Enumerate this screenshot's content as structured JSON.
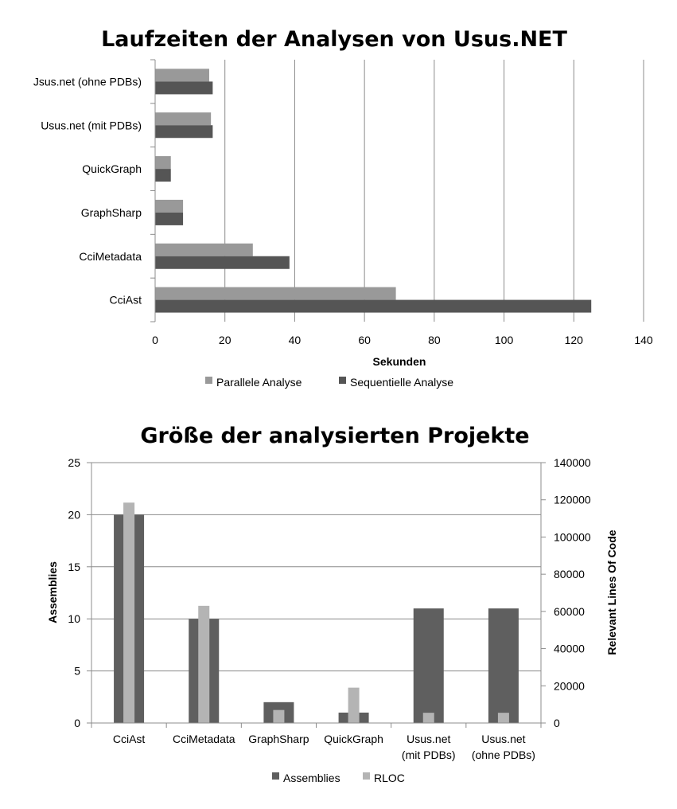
{
  "chart_data": [
    {
      "type": "bar",
      "orientation": "horizontal",
      "title": "Laufzeiten der Analysen von Usus.NET",
      "xlabel": "Sekunden",
      "ylabel": "",
      "categories": [
        "CciAst",
        "CciMetadata",
        "GraphSharp",
        "QuickGraph",
        "Usus.net (mit PDBs)",
        "Jsus.net (ohne PDBs)"
      ],
      "series": [
        {
          "name": "Parallele Analyse",
          "color": "#999999",
          "values": [
            69,
            28,
            8,
            4.5,
            16,
            15.5
          ]
        },
        {
          "name": "Sequentielle Analyse",
          "color": "#555555",
          "values": [
            125,
            38.5,
            8,
            4.5,
            16.5,
            16.5
          ]
        }
      ],
      "xlim": [
        0,
        140
      ],
      "xticks": [
        0,
        20,
        40,
        60,
        80,
        100,
        120,
        140
      ],
      "grid": "vertical",
      "legend": "bottom"
    },
    {
      "type": "bar",
      "title": "Größe der analysierten Projekte",
      "ylabel": "Assemblies",
      "y2label": "Relevant Lines Of Code",
      "categories": [
        [
          "CciAst"
        ],
        [
          "CciMetadata"
        ],
        [
          "GraphSharp"
        ],
        [
          "QuickGraph"
        ],
        [
          "Usus.net",
          "(mit PDBs)"
        ],
        [
          "Usus.net",
          "(ohne PDBs)"
        ]
      ],
      "series": [
        {
          "name": "Assemblies",
          "axis": "left",
          "color": "#5f5f5f",
          "values": [
            20,
            10,
            2,
            1,
            11,
            11
          ]
        },
        {
          "name": "RLOC",
          "axis": "right",
          "color": "#b4b4b4",
          "values": [
            118500,
            63000,
            7000,
            19000,
            5500,
            5500
          ]
        }
      ],
      "ylim": [
        0,
        25
      ],
      "yticks": [
        0,
        5,
        10,
        15,
        20,
        25
      ],
      "y2lim": [
        0,
        140000
      ],
      "y2ticks": [
        0,
        20000,
        40000,
        60000,
        80000,
        100000,
        120000,
        140000
      ],
      "grid": "horizontal",
      "legend": "bottom"
    }
  ]
}
